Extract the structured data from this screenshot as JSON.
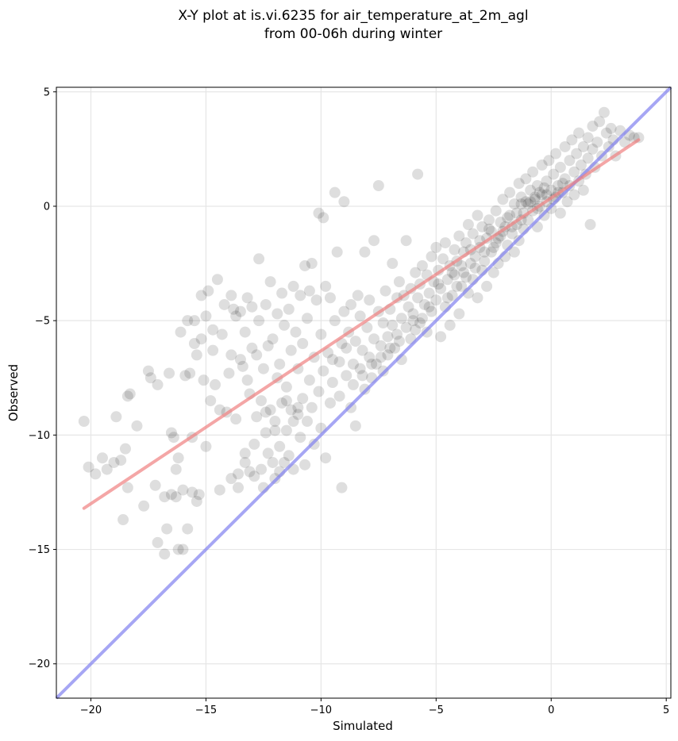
{
  "chart_data": {
    "type": "scatter",
    "title_lines": [
      "X-Y plot at is.vi.6235 for air_temperature_at_2m_agl",
      "from 00-06h during winter"
    ],
    "xlabel": "Simulated",
    "ylabel": "Observed",
    "xlim": [
      -21.5,
      5.2
    ],
    "ylim": [
      -21.5,
      5.2
    ],
    "xticks": [
      -20,
      -15,
      -10,
      -5,
      0,
      5
    ],
    "yticks": [
      -20,
      -15,
      -10,
      -5,
      0,
      5
    ],
    "xtick_labels": [
      "−20",
      "−15",
      "−10",
      "−5",
      "0",
      "5"
    ],
    "ytick_labels": [
      "−20",
      "−15",
      "−10",
      "−5",
      "0",
      "5"
    ],
    "grid": true,
    "colors": {
      "points": "#000000",
      "fit_line": "#f08080",
      "one_to_one": "#8080f0"
    },
    "one_to_one_line": {
      "x": [
        -21.5,
        5.2
      ],
      "y": [
        -21.5,
        5.2
      ]
    },
    "fit_line": {
      "x": [
        -20.3,
        3.8
      ],
      "y": [
        -13.2,
        2.9
      ]
    },
    "points": [
      [
        -20.3,
        -9.4
      ],
      [
        -20.1,
        -11.4
      ],
      [
        -19.8,
        -11.7
      ],
      [
        -19.5,
        -11.0
      ],
      [
        -19.3,
        -11.5
      ],
      [
        -19.0,
        -11.2
      ],
      [
        -18.9,
        -9.2
      ],
      [
        -18.7,
        -11.1
      ],
      [
        -18.6,
        -13.7
      ],
      [
        -18.5,
        -10.6
      ],
      [
        -18.4,
        -8.3
      ],
      [
        -18.3,
        -8.2
      ],
      [
        -18.4,
        -12.3
      ],
      [
        -18.0,
        -9.6
      ],
      [
        -17.7,
        -13.1
      ],
      [
        -17.5,
        -7.2
      ],
      [
        -17.4,
        -7.5
      ],
      [
        -17.2,
        -12.2
      ],
      [
        -17.1,
        -7.8
      ],
      [
        -17.1,
        -14.7
      ],
      [
        -16.8,
        -15.2
      ],
      [
        -16.8,
        -12.7
      ],
      [
        -16.7,
        -14.1
      ],
      [
        -16.6,
        -7.3
      ],
      [
        -16.5,
        -12.6
      ],
      [
        -16.5,
        -9.9
      ],
      [
        -16.4,
        -10.1
      ],
      [
        -16.3,
        -12.7
      ],
      [
        -16.3,
        -11.5
      ],
      [
        -16.2,
        -11.0
      ],
      [
        -16.2,
        -15.0
      ],
      [
        -16.1,
        -5.5
      ],
      [
        -16.0,
        -12.4
      ],
      [
        -16.0,
        -15.0
      ],
      [
        -15.9,
        -7.4
      ],
      [
        -15.8,
        -5.0
      ],
      [
        -15.8,
        -14.1
      ],
      [
        -15.7,
        -7.3
      ],
      [
        -15.6,
        -10.1
      ],
      [
        -15.6,
        -12.5
      ],
      [
        -15.5,
        -5.0
      ],
      [
        -15.5,
        -6.0
      ],
      [
        -15.4,
        -12.9
      ],
      [
        -15.4,
        -6.5
      ],
      [
        -15.3,
        -12.6
      ],
      [
        -15.2,
        -3.9
      ],
      [
        -15.2,
        -5.8
      ],
      [
        -15.1,
        -7.6
      ],
      [
        -15.0,
        -10.5
      ],
      [
        -15.0,
        -4.8
      ],
      [
        -14.9,
        -3.7
      ],
      [
        -14.8,
        -8.5
      ],
      [
        -14.7,
        -5.4
      ],
      [
        -14.7,
        -6.3
      ],
      [
        -14.6,
        -7.8
      ],
      [
        -14.5,
        -3.2
      ],
      [
        -14.4,
        -12.4
      ],
      [
        -14.4,
        -8.9
      ],
      [
        -14.3,
        -5.6
      ],
      [
        -14.2,
        -4.3
      ],
      [
        -14.1,
        -9.0
      ],
      [
        -14.0,
        -7.3
      ],
      [
        -13.9,
        -6.5
      ],
      [
        -13.9,
        -3.9
      ],
      [
        -13.8,
        -4.5
      ],
      [
        -13.7,
        -4.8
      ],
      [
        -13.7,
        -9.3
      ],
      [
        -13.6,
        -12.3
      ],
      [
        -13.5,
        -6.7
      ],
      [
        -13.5,
        -4.6
      ],
      [
        -13.4,
        -7.0
      ],
      [
        -13.3,
        -5.5
      ],
      [
        -13.3,
        -10.8
      ],
      [
        -13.2,
        -7.6
      ],
      [
        -13.2,
        -4.0
      ],
      [
        -13.1,
        -11.6
      ],
      [
        -13.1,
        -8.2
      ],
      [
        -13.0,
        -6.2
      ],
      [
        -13.0,
        -4.4
      ],
      [
        -12.9,
        -11.8
      ],
      [
        -12.9,
        -10.4
      ],
      [
        -12.8,
        -9.2
      ],
      [
        -12.8,
        -6.5
      ],
      [
        -12.7,
        -5.0
      ],
      [
        -12.7,
        -2.3
      ],
      [
        -12.6,
        -8.5
      ],
      [
        -12.6,
        -11.5
      ],
      [
        -12.5,
        -12.3
      ],
      [
        -12.5,
        -7.1
      ],
      [
        -12.4,
        -4.3
      ],
      [
        -12.4,
        -9.9
      ],
      [
        -12.3,
        -6.1
      ],
      [
        -12.3,
        -10.8
      ],
      [
        -12.2,
        -8.9
      ],
      [
        -12.2,
        -3.3
      ],
      [
        -12.1,
        -5.8
      ],
      [
        -12.0,
        -11.9
      ],
      [
        -12.0,
        -9.4
      ],
      [
        -11.9,
        -7.5
      ],
      [
        -11.9,
        -4.7
      ],
      [
        -11.8,
        -10.5
      ],
      [
        -11.8,
        -6.9
      ],
      [
        -11.7,
        -8.6
      ],
      [
        -11.7,
        -3.8
      ],
      [
        -11.6,
        -11.2
      ],
      [
        -11.6,
        -5.2
      ],
      [
        -11.5,
        -9.8
      ],
      [
        -11.5,
        -7.9
      ],
      [
        -11.4,
        -4.5
      ],
      [
        -11.4,
        -10.9
      ],
      [
        -11.3,
        -6.3
      ],
      [
        -11.3,
        -8.9
      ],
      [
        -11.2,
        -3.5
      ],
      [
        -11.2,
        -11.5
      ],
      [
        -11.1,
        -5.5
      ],
      [
        -11.0,
        -9.1
      ],
      [
        -11.0,
        -7.1
      ],
      [
        -10.9,
        -3.9
      ],
      [
        -10.9,
        -10.1
      ],
      [
        -10.8,
        -8.4
      ],
      [
        -10.8,
        -6.0
      ],
      [
        -10.7,
        -2.6
      ],
      [
        -10.7,
        -11.3
      ],
      [
        -10.6,
        -4.9
      ],
      [
        -10.6,
        -9.4
      ],
      [
        -10.5,
        -7.6
      ],
      [
        -10.5,
        -3.7
      ],
      [
        -10.4,
        -8.8
      ],
      [
        -10.4,
        -2.5
      ],
      [
        -10.3,
        -6.6
      ],
      [
        -10.3,
        -10.4
      ],
      [
        -10.2,
        -4.1
      ],
      [
        -10.1,
        -8.1
      ],
      [
        -10.1,
        -0.3
      ],
      [
        -10.0,
        -5.6
      ],
      [
        -10.0,
        -9.7
      ],
      [
        -9.9,
        -0.5
      ],
      [
        -9.9,
        -7.2
      ],
      [
        -9.8,
        -3.5
      ],
      [
        -9.8,
        -11.0
      ],
      [
        -9.7,
        -6.4
      ],
      [
        -9.6,
        -8.6
      ],
      [
        -9.6,
        -4.0
      ],
      [
        -9.5,
        -7.7
      ],
      [
        -9.4,
        -5.0
      ],
      [
        -9.4,
        0.6
      ],
      [
        -9.3,
        -2.0
      ],
      [
        -9.2,
        -6.8
      ],
      [
        -9.2,
        -8.3
      ],
      [
        -9.1,
        -12.3
      ],
      [
        -9.0,
        0.2
      ],
      [
        -9.0,
        -4.6
      ],
      [
        -8.9,
        -6.2
      ],
      [
        -8.9,
        -7.4
      ],
      [
        -8.8,
        -5.5
      ],
      [
        -8.7,
        -8.8
      ],
      [
        -8.7,
        -4.3
      ],
      [
        -8.6,
        -6.9
      ],
      [
        -8.5,
        -9.6
      ],
      [
        -8.5,
        -5.9
      ],
      [
        -8.4,
        -3.9
      ],
      [
        -8.3,
        -7.1
      ],
      [
        -8.3,
        -4.8
      ],
      [
        -8.2,
        -6.3
      ],
      [
        -8.1,
        -8.0
      ],
      [
        -8.1,
        -2.0
      ],
      [
        -8.0,
        -5.3
      ],
      [
        -7.9,
        -6.6
      ],
      [
        -7.9,
        -4.1
      ],
      [
        -7.8,
        -7.5
      ],
      [
        -7.7,
        -5.8
      ],
      [
        -7.7,
        -1.5
      ],
      [
        -7.6,
        -6.9
      ],
      [
        -7.5,
        -4.6
      ],
      [
        -7.5,
        0.9
      ],
      [
        -7.4,
        -6.1
      ],
      [
        -7.3,
        -5.1
      ],
      [
        -7.3,
        -7.2
      ],
      [
        -7.2,
        -3.7
      ],
      [
        -7.1,
        -5.7
      ],
      [
        -7.1,
        -6.5
      ],
      [
        -7.0,
        -4.5
      ],
      [
        -6.9,
        -5.2
      ],
      [
        -6.9,
        -2.5
      ],
      [
        -6.8,
        -6.2
      ],
      [
        -6.7,
        -4.0
      ],
      [
        -6.7,
        -5.6
      ],
      [
        -6.6,
        -3.3
      ],
      [
        -6.5,
        -4.9
      ],
      [
        -6.5,
        -6.7
      ],
      [
        -6.4,
        -3.9
      ],
      [
        -6.3,
        -5.3
      ],
      [
        -6.3,
        -1.5
      ],
      [
        -6.2,
        -4.4
      ],
      [
        -6.1,
        -5.8
      ],
      [
        -6.1,
        -3.6
      ],
      [
        -6.0,
        -4.7
      ],
      [
        -5.9,
        -2.9
      ],
      [
        -5.9,
        -5.4
      ],
      [
        -5.8,
        -4.0
      ],
      [
        -5.8,
        1.4
      ],
      [
        -5.7,
        -3.4
      ],
      [
        -5.6,
        -4.9
      ],
      [
        -5.6,
        -2.6
      ],
      [
        -5.5,
        -4.3
      ],
      [
        -5.4,
        -3.0
      ],
      [
        -5.4,
        -5.5
      ],
      [
        -5.3,
        -3.8
      ],
      [
        -5.2,
        -2.2
      ],
      [
        -5.2,
        -4.6
      ],
      [
        -5.1,
        -3.3
      ],
      [
        -5.0,
        -1.8
      ],
      [
        -5.0,
        -4.1
      ],
      [
        -4.9,
        -2.8
      ],
      [
        -4.8,
        -5.7
      ],
      [
        -4.8,
        -3.6
      ],
      [
        -4.7,
        -2.3
      ],
      [
        -4.6,
        -4.4
      ],
      [
        -4.6,
        -1.6
      ],
      [
        -4.5,
        -3.2
      ],
      [
        -4.4,
        -2.6
      ],
      [
        -4.4,
        -5.2
      ],
      [
        -4.3,
        -3.9
      ],
      [
        -4.2,
        -1.9
      ],
      [
        -4.2,
        -3.0
      ],
      [
        -4.1,
        -2.4
      ],
      [
        -4.0,
        -4.7
      ],
      [
        -4.0,
        -1.3
      ],
      [
        -3.9,
        -3.5
      ],
      [
        -3.8,
        -2.0
      ],
      [
        -3.8,
        -2.9
      ],
      [
        -3.7,
        -1.6
      ],
      [
        -3.6,
        -3.8
      ],
      [
        -3.6,
        -0.8
      ],
      [
        -3.5,
        -2.5
      ],
      [
        -3.4,
        -1.2
      ],
      [
        -3.4,
        -3.2
      ],
      [
        -3.3,
        -2.2
      ],
      [
        -3.2,
        -0.4
      ],
      [
        -3.2,
        -4.0
      ],
      [
        -3.1,
        -1.8
      ],
      [
        -3.0,
        -2.8
      ],
      [
        -3.0,
        -0.9
      ],
      [
        -2.9,
        -2.4
      ],
      [
        -2.8,
        -1.4
      ],
      [
        -2.8,
        -3.5
      ],
      [
        -2.7,
        -0.6
      ],
      [
        -2.6,
        -2.0
      ],
      [
        -2.6,
        -1.1
      ],
      [
        -2.5,
        -2.9
      ],
      [
        -2.4,
        -0.2
      ],
      [
        -2.4,
        -1.6
      ],
      [
        -2.3,
        -2.5
      ],
      [
        -2.2,
        -0.7
      ],
      [
        -2.2,
        -1.3
      ],
      [
        -2.1,
        0.3
      ],
      [
        -2.0,
        -2.2
      ],
      [
        -2.0,
        -0.9
      ],
      [
        -1.9,
        -1.7
      ],
      [
        -1.8,
        0.6
      ],
      [
        -1.8,
        -0.4
      ],
      [
        -1.7,
        -1.2
      ],
      [
        -1.6,
        -2.0
      ],
      [
        -1.6,
        0.1
      ],
      [
        -1.5,
        -0.8
      ],
      [
        -1.4,
        1.0
      ],
      [
        -1.4,
        -1.5
      ],
      [
        -1.3,
        0.4
      ],
      [
        -1.2,
        -0.3
      ],
      [
        -1.2,
        -1.0
      ],
      [
        -1.1,
        1.2
      ],
      [
        -1.0,
        0.1
      ],
      [
        -1.0,
        -0.6
      ],
      [
        -0.9,
        0.7
      ],
      [
        -0.8,
        -0.2
      ],
      [
        -0.8,
        1.5
      ],
      [
        -0.7,
        0.3
      ],
      [
        -0.6,
        -0.9
      ],
      [
        -0.6,
        0.9
      ],
      [
        -0.5,
        0.0
      ],
      [
        -0.4,
        1.8
      ],
      [
        -0.4,
        0.5
      ],
      [
        -0.3,
        -0.4
      ],
      [
        -0.2,
        1.1
      ],
      [
        -0.2,
        0.2
      ],
      [
        -0.1,
        2.0
      ],
      [
        0.0,
        0.7
      ],
      [
        0.0,
        -0.1
      ],
      [
        0.1,
        1.4
      ],
      [
        0.2,
        0.4
      ],
      [
        0.2,
        2.3
      ],
      [
        0.3,
        0.9
      ],
      [
        0.4,
        -0.3
      ],
      [
        0.4,
        1.7
      ],
      [
        0.5,
        0.6
      ],
      [
        0.6,
        2.6
      ],
      [
        0.6,
        1.2
      ],
      [
        0.7,
        0.2
      ],
      [
        0.8,
        2.0
      ],
      [
        0.8,
        0.9
      ],
      [
        0.9,
        2.9
      ],
      [
        1.0,
        1.5
      ],
      [
        1.0,
        0.5
      ],
      [
        1.1,
        2.3
      ],
      [
        1.2,
        1.1
      ],
      [
        1.2,
        3.2
      ],
      [
        1.3,
        1.8
      ],
      [
        1.4,
        0.7
      ],
      [
        1.4,
        2.6
      ],
      [
        1.5,
        1.4
      ],
      [
        1.6,
        3.0
      ],
      [
        1.6,
        2.1
      ],
      [
        1.7,
        -0.8
      ],
      [
        1.8,
        2.5
      ],
      [
        1.8,
        3.5
      ],
      [
        1.9,
        1.7
      ],
      [
        2.0,
        2.8
      ],
      [
        2.1,
        3.7
      ],
      [
        2.2,
        2.2
      ],
      [
        2.3,
        4.1
      ],
      [
        2.4,
        3.2
      ],
      [
        2.5,
        2.6
      ],
      [
        2.6,
        3.4
      ],
      [
        2.7,
        2.9
      ],
      [
        2.8,
        2.2
      ],
      [
        3.0,
        3.3
      ],
      [
        3.2,
        2.8
      ],
      [
        3.4,
        3.1
      ],
      [
        3.6,
        3.0
      ],
      [
        3.8,
        3.0
      ],
      [
        -4.9,
        -3.4
      ],
      [
        -4.3,
        -2.9
      ],
      [
        -3.9,
        -2.6
      ],
      [
        -3.5,
        -1.9
      ],
      [
        -3.1,
        -1.5
      ],
      [
        -2.7,
        -1.0
      ],
      [
        -2.3,
        -1.4
      ],
      [
        -1.9,
        -0.5
      ],
      [
        -1.5,
        -0.3
      ],
      [
        -1.1,
        0.2
      ],
      [
        -0.7,
        0.4
      ],
      [
        -0.3,
        0.8
      ],
      [
        -1.3,
        -0.6
      ],
      [
        -2.1,
        -1.1
      ],
      [
        -2.5,
        -1.8
      ],
      [
        -3.3,
        -2.7
      ],
      [
        -3.7,
        -3.1
      ],
      [
        -4.1,
        -3.5
      ],
      [
        -4.5,
        -4.0
      ],
      [
        -5.3,
        -4.4
      ],
      [
        -5.7,
        -5.1
      ],
      [
        -6.0,
        -5.0
      ],
      [
        -6.6,
        -5.9
      ],
      [
        -7.0,
        -6.2
      ],
      [
        -7.4,
        -6.6
      ],
      [
        -7.8,
        -6.9
      ],
      [
        -8.2,
        -7.4
      ],
      [
        -8.6,
        -7.8
      ],
      [
        -9.1,
        -6.0
      ],
      [
        -9.5,
        -6.7
      ],
      [
        -11.8,
        -11.6
      ],
      [
        -12.1,
        -11.2
      ],
      [
        -13.6,
        -11.7
      ],
      [
        -13.9,
        -11.9
      ],
      [
        -13.3,
        -11.2
      ],
      [
        -12.0,
        -9.8
      ],
      [
        -11.5,
        -8.5
      ],
      [
        -11.0,
        -8.8
      ],
      [
        -12.4,
        -9.0
      ],
      [
        -11.2,
        -9.4
      ],
      [
        -0.2,
        0.5
      ],
      [
        0.1,
        0.3
      ],
      [
        -0.5,
        0.6
      ],
      [
        -0.9,
        0.2
      ],
      [
        0.3,
        0.6
      ],
      [
        0.5,
        1.0
      ],
      [
        -1.7,
        -0.9
      ],
      [
        -1.3,
        0.1
      ],
      [
        -0.6,
        -0.1
      ],
      [
        -2.9,
        -2.0
      ]
    ]
  }
}
